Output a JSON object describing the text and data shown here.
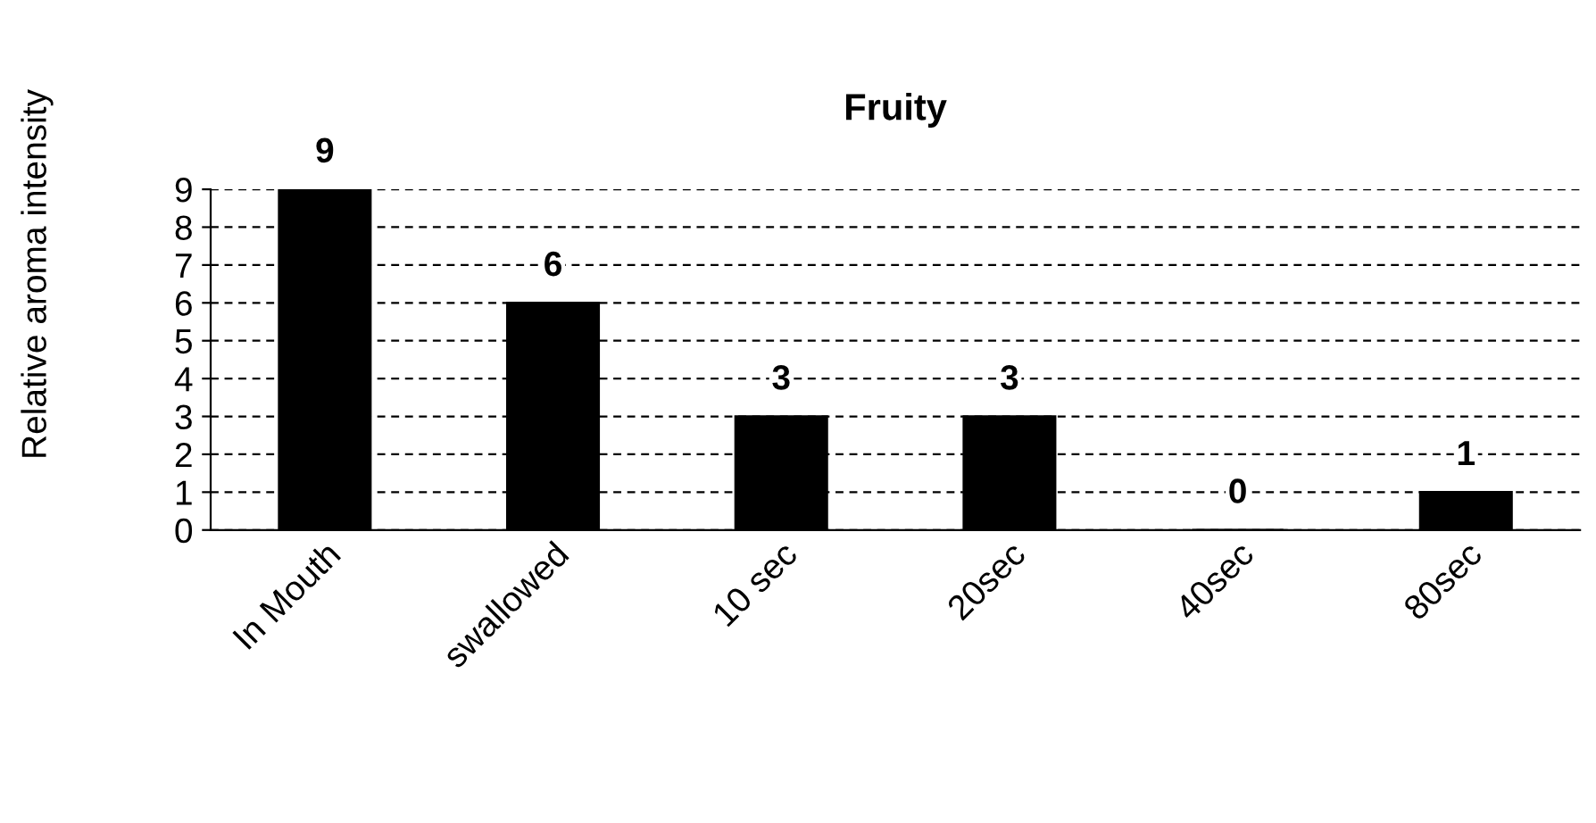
{
  "chart_data": {
    "type": "bar",
    "title": "Fruity",
    "ylabel": "Relative aroma intensity",
    "categories": [
      "In Mouth",
      "swallowed",
      "10 sec",
      "20sec",
      "40sec",
      "80sec"
    ],
    "values": [
      9,
      6,
      3,
      3,
      0,
      1
    ],
    "color": "#000000",
    "ylim": [
      0,
      9
    ],
    "yticks": [
      0,
      1,
      2,
      3,
      4,
      5,
      6,
      7,
      8,
      9
    ],
    "grid": "y",
    "data_labels": true
  }
}
